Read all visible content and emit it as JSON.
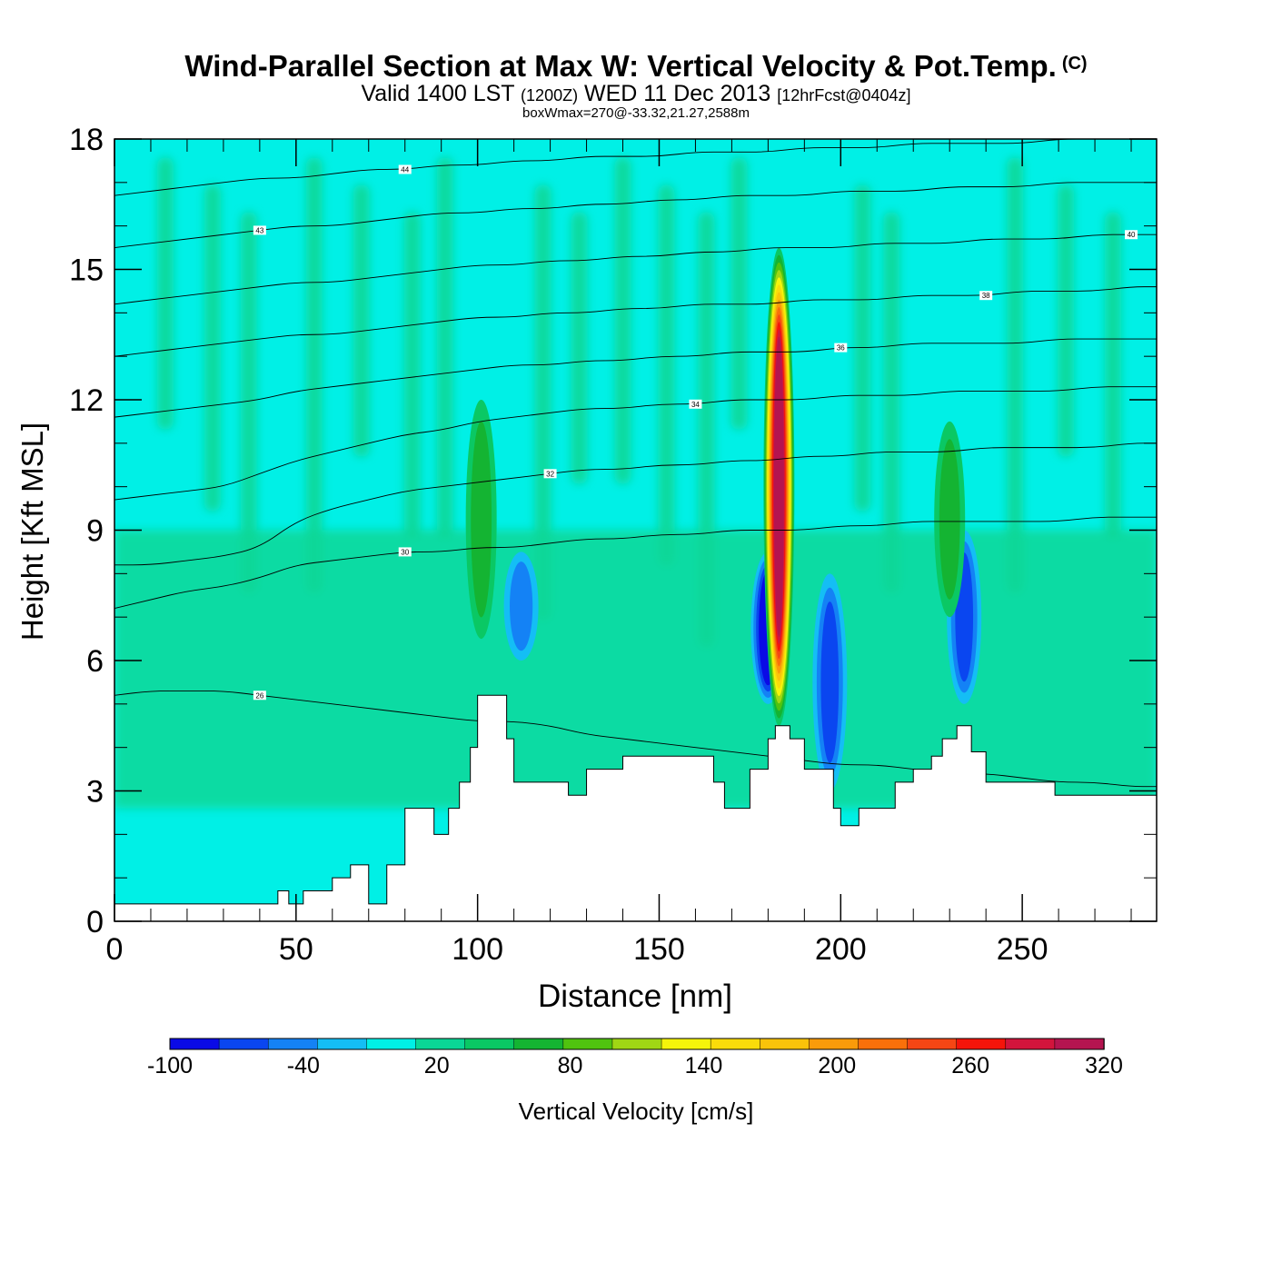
{
  "header": {
    "title": "Wind-Parallel Section at Max W: Vertical Velocity & Pot.Temp.",
    "copyright": "(C)",
    "valid_prefix": "Valid 1400 LST",
    "valid_utc": "(1200Z)",
    "valid_date": "WED 11 Dec 2013",
    "forecast": "[12hrFcst@0404z]",
    "box_max": "boxWmax=270@-33.32,21.27,2588m"
  },
  "chart_data": {
    "type": "heatmap",
    "title": "Wind-Parallel Section at Max W: Vertical Velocity & Pot.Temp.",
    "xlabel": "Distance [nm]",
    "ylabel": "Height [Kft MSL]",
    "xlim": [
      0,
      287
    ],
    "ylim": [
      0,
      18
    ],
    "x_ticks": [
      0,
      50,
      100,
      150,
      200,
      250
    ],
    "y_ticks": [
      0,
      3,
      6,
      9,
      12,
      15,
      18
    ],
    "colorbar": {
      "label": "Vertical Velocity [cm/s]",
      "levels": [
        -100,
        -80,
        -60,
        -40,
        -20,
        0,
        20,
        40,
        60,
        80,
        100,
        120,
        140,
        160,
        180,
        200,
        220,
        240,
        260,
        280,
        300,
        320
      ],
      "tick_labels": [
        "-100",
        "-40",
        "20",
        "80",
        "140",
        "200",
        "260",
        "320"
      ],
      "colors": [
        "#0a0ae6",
        "#0a46f0",
        "#1482f5",
        "#14bef5",
        "#00f0e6",
        "#0ad796",
        "#0ac864",
        "#14b432",
        "#50c30f",
        "#a0d714",
        "#f5f50a",
        "#fadc0a",
        "#fac30a",
        "#fa9b0a",
        "#fa700a",
        "#f54614",
        "#f5140a",
        "#d2143c",
        "#b41450"
      ],
      "background_color": "#00f0e6"
    },
    "vertical_velocity_max": {
      "value": 270,
      "units": "cm/s",
      "lat": -33.32,
      "lon": 21.27,
      "height_m": 2588
    },
    "updraft_cores": [
      {
        "x": 101,
        "y_range": [
          6.5,
          12
        ],
        "peak": 40
      },
      {
        "x": 183,
        "y_range": [
          4.5,
          15.5
        ],
        "peak": 270
      },
      {
        "x": 230,
        "y_range": [
          7,
          11.5
        ],
        "peak": 40
      }
    ],
    "downdraft_cores": [
      {
        "x": 180,
        "y_range": [
          5,
          8.5
        ],
        "peak": -100
      },
      {
        "x": 197,
        "y_range": [
          3,
          8
        ],
        "peak": -60
      },
      {
        "x": 234,
        "y_range": [
          5,
          9
        ],
        "peak": -60
      },
      {
        "x": 112,
        "y_range": [
          6,
          8.5
        ],
        "peak": -40
      }
    ],
    "terrain_profile": {
      "x": [
        0,
        32,
        45,
        48,
        52,
        60,
        65,
        70,
        75,
        80,
        85,
        88,
        92,
        95,
        98,
        100,
        106,
        108,
        110,
        120,
        125,
        130,
        140,
        155,
        165,
        168,
        170,
        175,
        180,
        182,
        186,
        190,
        198,
        200,
        205,
        215,
        220,
        225,
        228,
        232,
        236,
        240,
        245,
        250,
        259,
        265,
        287
      ],
      "y": [
        0.4,
        0.4,
        0.7,
        0.4,
        0.7,
        1.0,
        1.3,
        0.4,
        1.3,
        2.6,
        2.6,
        2.0,
        2.6,
        3.2,
        4.0,
        5.2,
        5.2,
        4.2,
        3.2,
        3.2,
        2.9,
        3.5,
        3.8,
        3.8,
        3.2,
        2.6,
        2.6,
        3.5,
        4.2,
        4.5,
        4.2,
        3.5,
        2.6,
        2.2,
        2.6,
        3.2,
        3.5,
        3.8,
        4.2,
        4.5,
        3.9,
        3.2,
        3.2,
        3.2,
        2.9,
        2.9,
        2.9
      ]
    },
    "potential_temperature_isentropes": [
      {
        "label": "26",
        "y": [
          5.2,
          5.3,
          5.3,
          5.3,
          5.2,
          5.1,
          5.0,
          4.9,
          4.8,
          4.7,
          4.6,
          4.6,
          4.5,
          4.3,
          4.2,
          4.1,
          4.0,
          3.9,
          3.8,
          3.7,
          3.6,
          3.6,
          3.5,
          3.4,
          3.4,
          3.3,
          3.2,
          3.2,
          3.1,
          3.1
        ]
      },
      {
        "label": "30",
        "y": [
          7.2,
          7.4,
          7.6,
          7.7,
          7.9,
          8.2,
          8.3,
          8.4,
          8.5,
          8.5,
          8.6,
          8.6,
          8.7,
          8.8,
          8.8,
          8.9,
          8.9,
          9.0,
          9.0,
          9.0,
          9.1,
          9.1,
          9.2,
          9.2,
          9.2,
          9.2,
          9.2,
          9.3,
          9.3,
          9.3
        ]
      },
      {
        "label": "32",
        "y": [
          8.2,
          8.2,
          8.3,
          8.4,
          8.6,
          9.2,
          9.5,
          9.7,
          9.9,
          10.0,
          10.1,
          10.2,
          10.3,
          10.4,
          10.4,
          10.5,
          10.5,
          10.6,
          10.6,
          10.7,
          10.7,
          10.8,
          10.8,
          10.8,
          10.9,
          10.9,
          10.9,
          10.9,
          11.0,
          11.0
        ]
      },
      {
        "label": "34",
        "y": [
          9.7,
          9.8,
          9.9,
          10.0,
          10.3,
          10.6,
          10.8,
          11.0,
          11.2,
          11.3,
          11.5,
          11.6,
          11.7,
          11.8,
          11.8,
          11.9,
          11.9,
          12.0,
          12.0,
          12.0,
          12.1,
          12.1,
          12.1,
          12.2,
          12.2,
          12.2,
          12.2,
          12.3,
          12.3,
          12.3
        ]
      },
      {
        "label": "36",
        "y": [
          11.6,
          11.7,
          11.8,
          11.9,
          12.0,
          12.2,
          12.3,
          12.4,
          12.5,
          12.6,
          12.7,
          12.8,
          12.8,
          12.9,
          12.9,
          13.0,
          13.0,
          13.1,
          13.1,
          13.1,
          13.2,
          13.2,
          13.3,
          13.3,
          13.3,
          13.3,
          13.4,
          13.4,
          13.4,
          13.4
        ]
      },
      {
        "label": "38",
        "y": [
          13.0,
          13.1,
          13.2,
          13.3,
          13.4,
          13.5,
          13.5,
          13.6,
          13.7,
          13.8,
          13.9,
          13.9,
          14.0,
          14.0,
          14.1,
          14.1,
          14.2,
          14.2,
          14.2,
          14.3,
          14.3,
          14.3,
          14.4,
          14.4,
          14.4,
          14.5,
          14.5,
          14.5,
          14.6,
          14.6
        ]
      },
      {
        "label": "40",
        "y": [
          14.2,
          14.3,
          14.4,
          14.5,
          14.6,
          14.7,
          14.7,
          14.8,
          14.9,
          15.0,
          15.1,
          15.1,
          15.2,
          15.2,
          15.3,
          15.3,
          15.4,
          15.4,
          15.5,
          15.5,
          15.5,
          15.6,
          15.6,
          15.6,
          15.7,
          15.7,
          15.7,
          15.8,
          15.8,
          15.8
        ]
      },
      {
        "label": "43",
        "y": [
          15.5,
          15.6,
          15.7,
          15.8,
          15.9,
          16.0,
          16.0,
          16.1,
          16.2,
          16.3,
          16.3,
          16.4,
          16.4,
          16.5,
          16.5,
          16.6,
          16.6,
          16.7,
          16.7,
          16.7,
          16.8,
          16.8,
          16.8,
          16.9,
          16.9,
          16.9,
          17.0,
          17.0,
          17.0,
          17.0
        ]
      },
      {
        "label": "44",
        "y": [
          16.7,
          16.8,
          16.9,
          17.0,
          17.1,
          17.1,
          17.2,
          17.3,
          17.3,
          17.4,
          17.4,
          17.5,
          17.5,
          17.6,
          17.6,
          17.6,
          17.7,
          17.7,
          17.7,
          17.8,
          17.8,
          17.8,
          17.9,
          17.9,
          17.9,
          17.9,
          18.0,
          18.0,
          18.0,
          18.0
        ]
      }
    ],
    "isentrope_x": [
      0,
      10,
      20,
      30,
      40,
      50,
      60,
      70,
      80,
      90,
      100,
      110,
      120,
      130,
      140,
      150,
      160,
      170,
      180,
      190,
      200,
      210,
      220,
      230,
      240,
      250,
      260,
      270,
      280,
      287
    ]
  }
}
